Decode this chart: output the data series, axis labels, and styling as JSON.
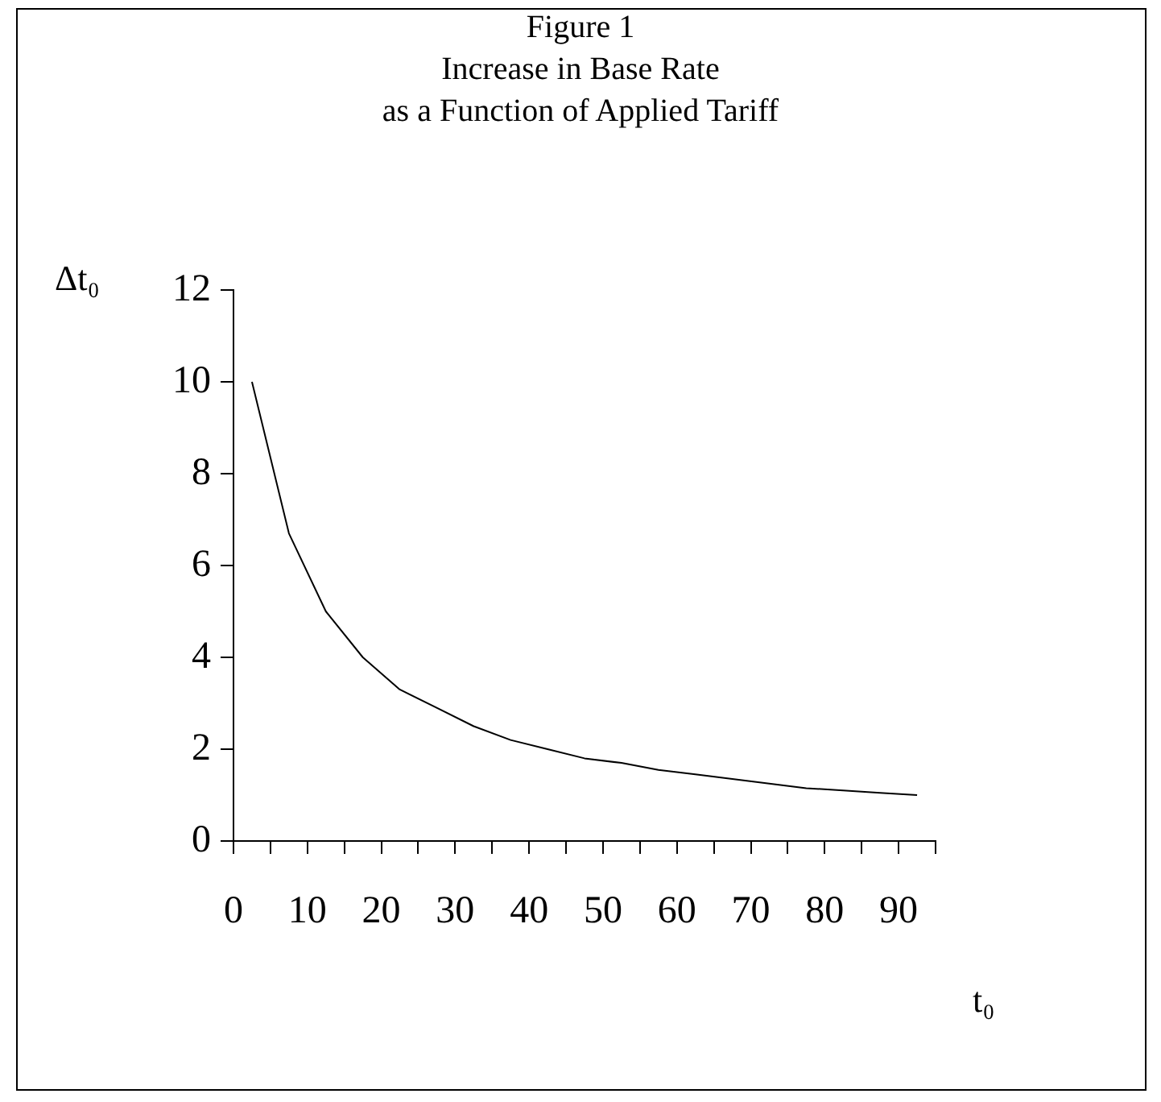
{
  "chart_data": {
    "type": "line",
    "title": "Figure 1\nIncrease in Base Rate\nas a Function of Applied Tariff",
    "xlabel": "t₀",
    "ylabel": "Δt₀",
    "x": [
      2.5,
      7.5,
      12.5,
      17.5,
      22.5,
      27.5,
      32.5,
      37.5,
      42.5,
      47.5,
      52.5,
      57.5,
      62.5,
      67.5,
      72.5,
      77.5,
      82.5,
      87.5,
      92.5
    ],
    "values": [
      10,
      6.7,
      5,
      4,
      3.3,
      2.9,
      2.5,
      2.2,
      2,
      1.8,
      1.7,
      1.55,
      1.45,
      1.35,
      1.25,
      1.15,
      1.1,
      1.05,
      1
    ],
    "color": "#000000",
    "marker": "none",
    "line_style": "solid",
    "xlim": [
      0,
      95
    ],
    "xticks": [
      0,
      {
        "value": 5,
        "label": null
      },
      10,
      {
        "value": 15,
        "label": null
      },
      20,
      {
        "value": 25,
        "label": null
      },
      30,
      {
        "value": 35,
        "label": null
      },
      40,
      {
        "value": 45,
        "label": null
      },
      50,
      {
        "value": 55,
        "label": null
      },
      60,
      {
        "value": 65,
        "label": null
      },
      70,
      {
        "value": 75,
        "label": null
      },
      80,
      {
        "value": 85,
        "label": null
      },
      90,
      {
        "value": 95,
        "label": null
      }
    ],
    "ylim": [
      0,
      12
    ],
    "yticks": [
      0,
      2,
      4,
      6,
      8,
      10,
      12
    ]
  }
}
